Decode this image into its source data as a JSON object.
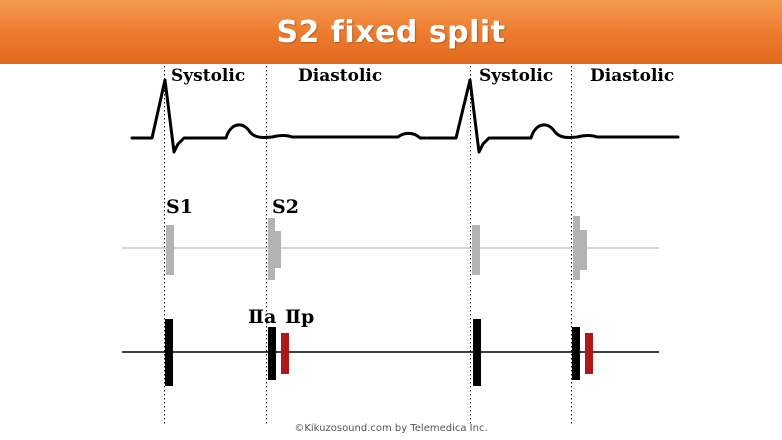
{
  "title": "S2 fixed split",
  "phases": [
    "Systolic",
    "Diastolic",
    "Systolic",
    "Diastolic"
  ],
  "sounds": {
    "s1": "S1",
    "s2": "S2"
  },
  "components": {
    "aortic": "Ⅱa",
    "pulmonic": "Ⅱp"
  },
  "footer": "©Kikuzosound.com by Telemedica Inc.",
  "colors": {
    "title_bar": "#ec7a2c",
    "title_text": "#ffffff",
    "phonogram_gray": "#b3b3b3",
    "component_black": "#000000",
    "pulmonic_red": "#b01818"
  }
}
